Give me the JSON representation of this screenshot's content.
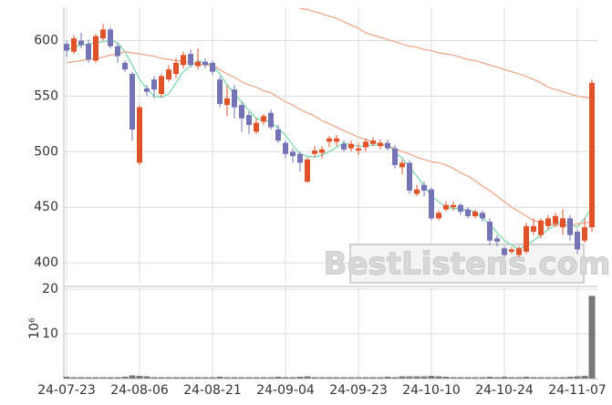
{
  "chart_data": {
    "type": "candlestick",
    "watermark": "BestListens.com",
    "categories": [
      "24-07-23",
      null,
      null,
      null,
      null,
      null,
      null,
      null,
      null,
      null,
      "24-08-06",
      null,
      null,
      null,
      null,
      null,
      null,
      null,
      null,
      null,
      "24-08-21",
      null,
      null,
      null,
      null,
      null,
      null,
      null,
      null,
      null,
      "24-09-04",
      null,
      null,
      null,
      null,
      null,
      null,
      null,
      null,
      null,
      "24-09-23",
      null,
      null,
      null,
      null,
      null,
      null,
      null,
      null,
      null,
      "24-10-10",
      null,
      null,
      null,
      null,
      null,
      null,
      null,
      null,
      null,
      "24-10-24",
      null,
      null,
      null,
      null,
      null,
      null,
      null,
      null,
      null,
      "24-11-07",
      null,
      null
    ],
    "open": [
      597,
      590,
      600,
      597,
      582,
      602,
      610,
      595,
      580,
      570,
      490,
      557,
      565,
      552,
      565,
      570,
      578,
      588,
      577,
      581,
      580,
      565,
      542,
      556,
      542,
      533,
      518,
      527,
      535,
      520,
      508,
      500,
      498,
      473,
      498,
      499,
      509,
      509,
      507,
      503,
      501,
      504,
      507,
      505,
      508,
      503,
      486,
      490,
      462,
      470,
      466,
      440,
      448,
      450,
      452,
      448,
      442,
      445,
      437,
      422,
      413,
      410,
      407,
      410,
      428,
      425,
      433,
      435,
      432,
      440,
      428,
      420,
      432
    ],
    "high": [
      600,
      605,
      607,
      601,
      606,
      615,
      612,
      598,
      582,
      572,
      542,
      560,
      568,
      570,
      578,
      584,
      590,
      592,
      593,
      584,
      582,
      568,
      560,
      560,
      545,
      536,
      530,
      534,
      538,
      524,
      510,
      503,
      500,
      495,
      505,
      505,
      514,
      515,
      510,
      510,
      508,
      512,
      513,
      511,
      511,
      506,
      493,
      492,
      470,
      473,
      468,
      447,
      455,
      455,
      454,
      450,
      448,
      447,
      440,
      425,
      415,
      414,
      415,
      436,
      440,
      440,
      443,
      445,
      448,
      443,
      430,
      440,
      565
    ],
    "low": [
      585,
      588,
      593,
      580,
      580,
      600,
      593,
      580,
      572,
      510,
      488,
      550,
      548,
      549,
      563,
      566,
      575,
      576,
      574,
      575,
      569,
      540,
      532,
      530,
      518,
      516,
      516,
      524,
      520,
      508,
      494,
      490,
      482,
      472,
      495,
      494,
      504,
      505,
      500,
      500,
      497,
      500,
      505,
      502,
      501,
      485,
      480,
      462,
      460,
      460,
      438,
      438,
      446,
      447,
      443,
      440,
      440,
      437,
      416,
      415,
      405,
      408,
      405,
      408,
      425,
      422,
      430,
      432,
      425,
      420,
      408,
      418,
      428
    ],
    "close": [
      591,
      602,
      596,
      583,
      604,
      610,
      595,
      586,
      574,
      520,
      540,
      554,
      556,
      568,
      574,
      580,
      587,
      578,
      581,
      578,
      572,
      543,
      548,
      540,
      530,
      524,
      526,
      532,
      522,
      510,
      498,
      496,
      490,
      493,
      501,
      502,
      512,
      512,
      502,
      507,
      503,
      509,
      510,
      508,
      503,
      488,
      490,
      465,
      466,
      465,
      440,
      445,
      452,
      452,
      446,
      442,
      446,
      440,
      420,
      419,
      407,
      412,
      413,
      433,
      433,
      438,
      440,
      442,
      440,
      425,
      412,
      432,
      562
    ],
    "up_color": "#e0522a",
    "down_color": "#7473b5",
    "series": [
      {
        "color": "#7fd9b0",
        "values": [
          592,
          594,
          596,
          597,
          598,
          599,
          600,
          598,
          590,
          578,
          565,
          557,
          550,
          549,
          552,
          562,
          572,
          577,
          582,
          580,
          578,
          570,
          560,
          552,
          545,
          537,
          530,
          528,
          527,
          521,
          515,
          506,
          498,
          496,
          495,
          497,
          500,
          504,
          508,
          506,
          505,
          505,
          506,
          506,
          506,
          500,
          494,
          486,
          478,
          469,
          460,
          455,
          450,
          449,
          449,
          447,
          446,
          440,
          435,
          427,
          420,
          416,
          412,
          416,
          420,
          425,
          430,
          434,
          438,
          435,
          432,
          440,
          450
        ]
      },
      {
        "color": "#eeaa8e",
        "values": [
          580,
          581,
          582,
          583,
          584,
          585,
          587,
          588,
          590,
          589,
          588,
          587,
          586,
          584,
          583,
          582,
          581,
          580,
          579,
          578,
          578,
          574,
          570,
          567,
          563,
          560,
          558,
          555,
          553,
          549,
          545,
          542,
          538,
          535,
          532,
          528,
          525,
          522,
          519,
          516,
          513,
          511,
          509,
          507,
          505,
          503,
          500,
          498,
          495,
          493,
          491,
          490,
          488,
          485,
          481,
          478,
          474,
          469,
          465,
          460,
          455,
          450,
          446,
          442,
          438,
          437,
          435,
          434,
          434,
          434,
          435,
          436,
          437
        ]
      },
      {
        "color": "#eeaa8e",
        "values": [
          null,
          null,
          null,
          null,
          null,
          null,
          null,
          null,
          null,
          null,
          null,
          null,
          null,
          null,
          null,
          null,
          null,
          null,
          null,
          null,
          null,
          null,
          null,
          null,
          null,
          null,
          null,
          null,
          null,
          null,
          null,
          null,
          629,
          628,
          626,
          624,
          622,
          620,
          617,
          614,
          611,
          607,
          605,
          603,
          601,
          599,
          597,
          595,
          594,
          592,
          591,
          589,
          588,
          587,
          585,
          583,
          582,
          580,
          578,
          576,
          574,
          572,
          570,
          568,
          565,
          562,
          558,
          556,
          554,
          552,
          550,
          549,
          548
        ]
      }
    ],
    "ylim": [
      382,
      630
    ],
    "yticks": [
      400,
      450,
      500,
      550,
      600
    ],
    "grid": true,
    "volume": {
      "color": "#777777",
      "ylabel": "10⁶",
      "ylim": [
        0,
        20
      ],
      "yticks": [
        10,
        20
      ],
      "values": [
        0.4,
        0.3,
        0.3,
        0.3,
        0.3,
        0.3,
        0.3,
        0.3,
        0.4,
        0.7,
        0.6,
        0.5,
        0.3,
        0.3,
        0.3,
        0.3,
        0.3,
        0.3,
        0.3,
        0.3,
        0.3,
        0.4,
        0.3,
        0.3,
        0.3,
        0.3,
        0.3,
        0.3,
        0.3,
        0.4,
        0.3,
        0.3,
        0.4,
        0.5,
        0.3,
        0.3,
        0.3,
        0.3,
        0.3,
        0.3,
        0.3,
        0.3,
        0.3,
        0.3,
        0.4,
        0.3,
        0.5,
        0.5,
        0.5,
        0.5,
        0.6,
        0.5,
        0.4,
        0.3,
        0.3,
        0.3,
        0.3,
        0.3,
        0.4,
        0.3,
        0.4,
        0.3,
        0.3,
        0.4,
        0.3,
        0.3,
        0.3,
        0.3,
        0.3,
        0.4,
        0.5,
        0.6,
        18.5
      ]
    }
  }
}
